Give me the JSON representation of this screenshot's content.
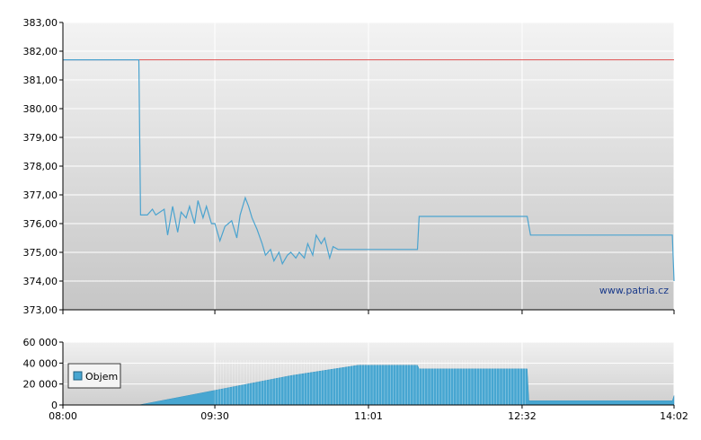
{
  "chart_data": [
    {
      "type": "line",
      "title": "",
      "xlabel": "",
      "ylabel": "",
      "ylim": [
        373,
        383
      ],
      "yticks": [
        "373,00",
        "374,00",
        "375,00",
        "376,00",
        "377,00",
        "378,00",
        "379,00",
        "380,00",
        "381,00",
        "382,00",
        "383,00"
      ],
      "xlim": [
        "08:00",
        "14:02"
      ],
      "grid": true,
      "reference_line": 381.7,
      "watermark": "www.patria.cz",
      "series": [
        {
          "x": [
            "08:00",
            "08:45",
            "08:46",
            "08:50",
            "08:53",
            "08:55",
            "09:00",
            "09:02",
            "09:05",
            "09:08",
            "09:10",
            "09:13",
            "09:15",
            "09:18",
            "09:20",
            "09:23",
            "09:25",
            "09:28",
            "09:30",
            "09:33",
            "09:36",
            "09:40",
            "09:43",
            "09:45",
            "09:48",
            "09:50",
            "09:52",
            "09:55",
            "09:58",
            "10:00",
            "10:03",
            "10:05",
            "10:08",
            "10:10",
            "10:13",
            "10:15",
            "10:18",
            "10:20",
            "10:23",
            "10:25",
            "10:28",
            "10:30",
            "10:33",
            "10:35",
            "10:38",
            "10:40",
            "10:43",
            "10:45",
            "10:48",
            "10:50",
            "10:53",
            "10:55",
            "11:30",
            "11:31",
            "12:35",
            "12:37",
            "14:01",
            "14:02"
          ],
          "y": [
            381.7,
            381.7,
            376.3,
            376.3,
            376.5,
            376.3,
            376.5,
            375.6,
            376.6,
            375.7,
            376.4,
            376.2,
            376.6,
            376.0,
            376.8,
            376.2,
            376.6,
            376.0,
            376.0,
            375.4,
            375.9,
            376.1,
            375.5,
            376.3,
            376.9,
            376.6,
            376.2,
            375.8,
            375.3,
            374.9,
            375.1,
            374.7,
            375.0,
            374.6,
            374.9,
            375.0,
            374.8,
            375.0,
            374.8,
            375.3,
            374.9,
            375.6,
            375.3,
            375.5,
            374.8,
            375.2,
            375.1,
            375.1,
            375.1,
            375.1,
            375.1,
            375.1,
            375.1,
            376.25,
            376.25,
            375.6,
            375.6,
            374.0
          ]
        }
      ]
    },
    {
      "type": "area",
      "title": "",
      "xlabel": "",
      "ylabel": "",
      "ylim": [
        0,
        60000
      ],
      "yticks": [
        "0",
        "20 000",
        "40 000",
        "60 000"
      ],
      "xticks": [
        "08:00",
        "09:30",
        "11:01",
        "12:32",
        "14:02"
      ],
      "grid": true,
      "legend": {
        "position": "left",
        "label": "Objem"
      },
      "series": [
        {
          "name": "Objem",
          "x": [
            "08:00",
            "08:45",
            "09:30",
            "10:15",
            "10:55",
            "11:30",
            "11:31",
            "12:35",
            "12:36",
            "14:01",
            "14:02"
          ],
          "y": [
            0,
            0,
            14000,
            28000,
            38000,
            38000,
            34500,
            34500,
            4000,
            4000,
            9000
          ]
        }
      ]
    }
  ]
}
